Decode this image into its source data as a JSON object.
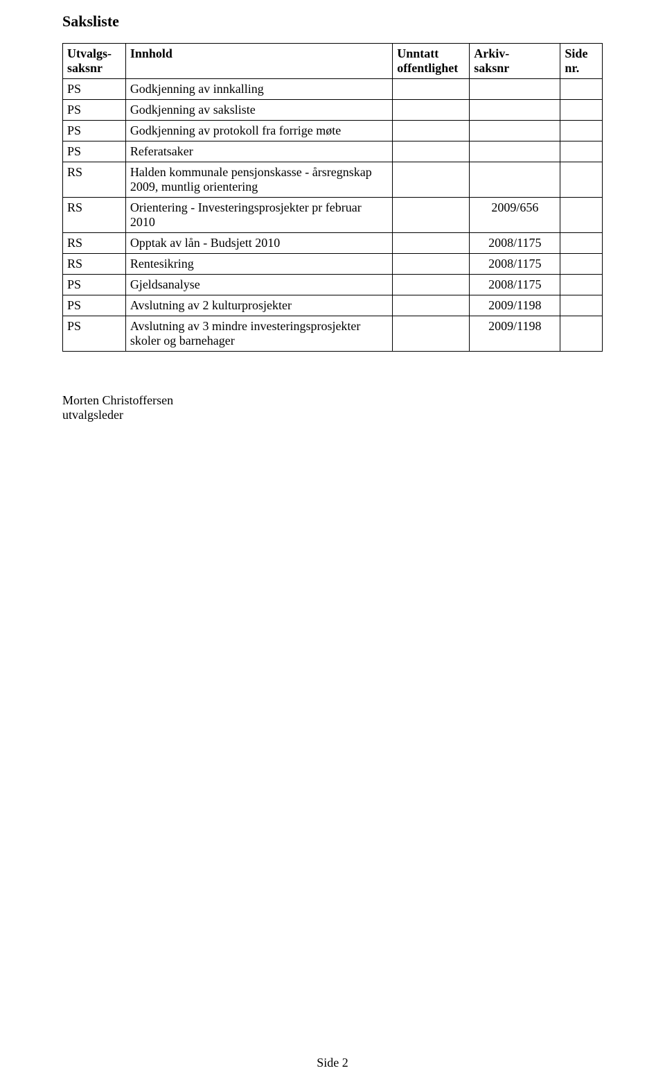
{
  "title": "Saksliste",
  "table": {
    "headers": {
      "col0_line1": "Utvalgs-",
      "col0_line2": "saksnr",
      "col1": "Innhold",
      "col2_line1": "Unntatt",
      "col2_line2": "offentlighet",
      "col3_line1": "Arkiv-",
      "col3_line2": "saksnr",
      "col4_line1": "Side",
      "col4_line2": "nr."
    },
    "rows": [
      {
        "c0": "PS",
        "c1": "Godkjenning av innkalling",
        "c2": "",
        "c3": "",
        "c4": ""
      },
      {
        "c0": "PS",
        "c1": "Godkjenning av saksliste",
        "c2": "",
        "c3": "",
        "c4": ""
      },
      {
        "c0": "PS",
        "c1": "Godkjenning av protokoll fra forrige møte",
        "c2": "",
        "c3": "",
        "c4": ""
      },
      {
        "c0": "PS",
        "c1": "Referatsaker",
        "c2": "",
        "c3": "",
        "c4": ""
      },
      {
        "c0": "RS",
        "c1": "Halden kommunale pensjonskasse - årsregnskap 2009, muntlig orientering",
        "c2": "",
        "c3": "",
        "c4": ""
      },
      {
        "c0": "RS",
        "c1": "Orientering - Investeringsprosjekter pr februar 2010",
        "c2": "",
        "c3": "2009/656",
        "c4": ""
      },
      {
        "c0": "RS",
        "c1": "Opptak av lån - Budsjett 2010",
        "c2": "",
        "c3": "2008/1175",
        "c4": ""
      },
      {
        "c0": "RS",
        "c1": "Rentesikring",
        "c2": "",
        "c3": "2008/1175",
        "c4": ""
      },
      {
        "c0": "PS",
        "c1": "Gjeldsanalyse",
        "c2": "",
        "c3": "2008/1175",
        "c4": ""
      },
      {
        "c0": "PS",
        "c1": "Avslutning av 2 kulturprosjekter",
        "c2": "",
        "c3": "2009/1198",
        "c4": ""
      },
      {
        "c0": "PS",
        "c1": "Avslutning av 3 mindre investeringsprosjekter skoler og barnehager",
        "c2": "",
        "c3": "2009/1198",
        "c4": ""
      }
    ]
  },
  "signature": {
    "name": "Morten Christoffersen",
    "role": "utvalgsleder"
  },
  "footer": "Side 2"
}
